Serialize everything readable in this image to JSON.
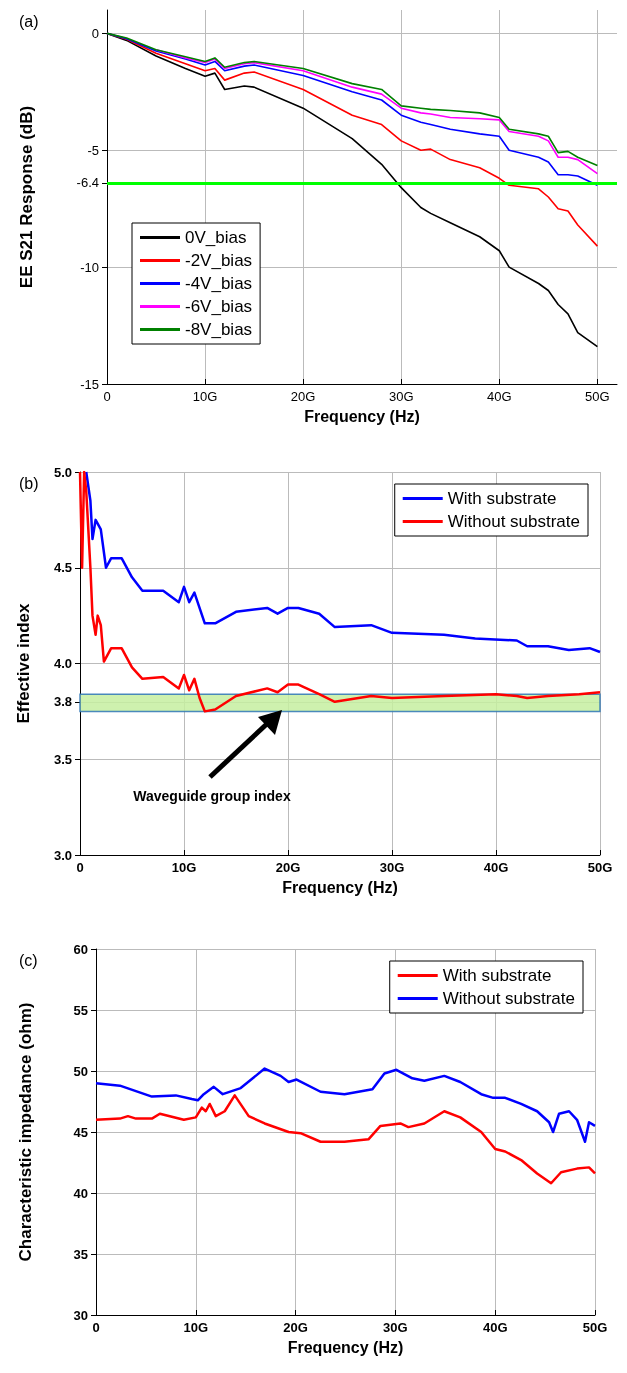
{
  "chart_data": [
    {
      "type": "line",
      "title": "(a)",
      "xlabel": "Frequency (Hz)",
      "ylabel": "EE S21 Response (dB)",
      "xlim": [
        0,
        52
      ],
      "ylim": [
        -15,
        1
      ],
      "xticks": [
        {
          "value": 0,
          "label": "0"
        },
        {
          "value": 10,
          "label": "10G"
        },
        {
          "value": 20,
          "label": "20G"
        },
        {
          "value": 30,
          "label": "30G"
        },
        {
          "value": 40,
          "label": "40G"
        },
        {
          "value": 50,
          "label": "50G"
        }
      ],
      "yticks": [
        0,
        -5,
        -6.4,
        -10,
        -15
      ],
      "grid": true,
      "legend": "bottom left",
      "line_style": "solid",
      "marker": "none",
      "ref_lines": [
        {
          "axis": "y",
          "value": -6.4,
          "color": "#00ff00"
        }
      ],
      "x": [
        0,
        2,
        5,
        8,
        10,
        11,
        12,
        14,
        15,
        20,
        25,
        28,
        30,
        32,
        33,
        35,
        38,
        40,
        41,
        44,
        45,
        46,
        47,
        48,
        50
      ],
      "series": [
        {
          "name": "0V_bias",
          "color": "#000000",
          "values": [
            0,
            -0.3,
            -0.97,
            -1.5,
            -1.83,
            -1.7,
            -2.4,
            -2.25,
            -2.3,
            -3.2,
            -4.5,
            -5.6,
            -6.6,
            -7.45,
            -7.7,
            -8.1,
            -8.7,
            -9.3,
            -10,
            -10.7,
            -11.0,
            -11.6,
            -12.0,
            -12.8,
            -13.4
          ]
        },
        {
          "name": "-2V_bias",
          "color": "#ff0000",
          "values": [
            0,
            -0.25,
            -0.85,
            -1.3,
            -1.6,
            -1.5,
            -2.0,
            -1.7,
            -1.65,
            -2.4,
            -3.5,
            -3.9,
            -4.6,
            -5.0,
            -4.95,
            -5.4,
            -5.75,
            -6.2,
            -6.5,
            -6.65,
            -7.0,
            -7.5,
            -7.6,
            -8.2,
            -9.1
          ]
        },
        {
          "name": "-4V_bias",
          "color": "#0000ff",
          "values": [
            0,
            -0.23,
            -0.75,
            -1.1,
            -1.35,
            -1.2,
            -1.6,
            -1.4,
            -1.35,
            -1.8,
            -2.5,
            -2.85,
            -3.5,
            -3.8,
            -3.9,
            -4.1,
            -4.3,
            -4.4,
            -5.0,
            -5.3,
            -5.5,
            -6.05,
            -6.05,
            -6.1,
            -6.5
          ]
        },
        {
          "name": "-6V_bias",
          "color": "#ff00ff",
          "values": [
            null,
            null,
            -0.7,
            -1.05,
            -1.25,
            -1.1,
            -1.5,
            -1.3,
            -1.25,
            -1.6,
            -2.3,
            -2.6,
            -3.2,
            -3.4,
            -3.45,
            -3.6,
            -3.65,
            -3.7,
            -4.2,
            -4.4,
            -4.6,
            -5.3,
            -5.3,
            -5.4,
            -6.0
          ]
        },
        {
          "name": "-8V_bias",
          "color": "#008000",
          "values": [
            0,
            -0.2,
            -0.7,
            -1.0,
            -1.2,
            -1.05,
            -1.45,
            -1.25,
            -1.2,
            -1.5,
            -2.15,
            -2.4,
            -3.1,
            -3.2,
            -3.25,
            -3.3,
            -3.4,
            -3.6,
            -4.1,
            -4.3,
            -4.4,
            -5.1,
            -5.05,
            -5.3,
            -5.65
          ]
        }
      ]
    },
    {
      "type": "line",
      "title": "(b)",
      "xlabel": "Frequency (Hz)",
      "ylabel": "Effective index",
      "xlim": [
        0,
        50
      ],
      "ylim": [
        3,
        5
      ],
      "xticks": [
        {
          "value": 0,
          "label": "0"
        },
        {
          "value": 10,
          "label": "10G"
        },
        {
          "value": 20,
          "label": "20G"
        },
        {
          "value": 30,
          "label": "30G"
        },
        {
          "value": 40,
          "label": "40G"
        },
        {
          "value": 50,
          "label": "50G"
        }
      ],
      "yticks": [
        {
          "value": 3,
          "label": "3.0"
        },
        3.5,
        3.8,
        {
          "value": 4,
          "label": "4.0"
        },
        4.5,
        {
          "value": 5,
          "label": "5.0"
        }
      ],
      "grid": true,
      "legend": "top right",
      "line_style": "solid",
      "marker": "none",
      "bands": [
        {
          "axis": "y",
          "from": 3.75,
          "to": 3.84,
          "color": "#c6efa0"
        }
      ],
      "annotations": [
        "Waveguide group index"
      ],
      "series": [
        {
          "name": "With substrate",
          "color": "#0000ff",
          "x": [
            0.6,
            1,
            1.2,
            1.5,
            2,
            2.5,
            3,
            4,
            5,
            6,
            8,
            9.5,
            10,
            10.5,
            11,
            12,
            13,
            15,
            18,
            19,
            20,
            21,
            23,
            24.5,
            28,
            30,
            35,
            38,
            42,
            43,
            45,
            47,
            49,
            50
          ],
          "values": [
            5.0,
            4.85,
            4.65,
            4.75,
            4.7,
            4.5,
            4.55,
            4.55,
            4.45,
            4.38,
            4.38,
            4.32,
            4.4,
            4.32,
            4.37,
            4.21,
            4.21,
            4.27,
            4.29,
            4.26,
            4.29,
            4.29,
            4.26,
            4.19,
            4.2,
            4.16,
            4.15,
            4.13,
            4.12,
            4.09,
            4.09,
            4.07,
            4.08,
            4.06
          ]
        },
        {
          "name": "Without substrate",
          "color": "#ff0000",
          "x": [
            0,
            0.2,
            0.4,
            0.6,
            1,
            1.2,
            1.5,
            1.7,
            2,
            2.3,
            3,
            4,
            5,
            6,
            8,
            9.5,
            10,
            10.5,
            11,
            11.5,
            12,
            13,
            15,
            18,
            19,
            20,
            21,
            23,
            24.5,
            28,
            30,
            35,
            40,
            42,
            43,
            45,
            48,
            50
          ],
          "values": [
            5.0,
            4.5,
            5.0,
            4.9,
            4.5,
            4.25,
            4.15,
            4.25,
            4.2,
            4.01,
            4.08,
            4.08,
            3.98,
            3.92,
            3.93,
            3.87,
            3.94,
            3.86,
            3.92,
            3.82,
            3.75,
            3.76,
            3.83,
            3.87,
            3.85,
            3.89,
            3.89,
            3.84,
            3.8,
            3.83,
            3.82,
            3.83,
            3.84,
            3.83,
            3.82,
            3.83,
            3.84,
            3.85
          ]
        }
      ]
    },
    {
      "type": "line",
      "title": "(c)",
      "xlabel": "Frequency (Hz)",
      "ylabel": "Characteristic impedance (ohm)",
      "xlim": [
        0,
        50
      ],
      "ylim": [
        30,
        60
      ],
      "xticks": [
        {
          "value": 0,
          "label": "0"
        },
        {
          "value": 10,
          "label": "10G"
        },
        {
          "value": 20,
          "label": "20G"
        },
        {
          "value": 30,
          "label": "30G"
        },
        {
          "value": 40,
          "label": "40G"
        },
        {
          "value": 50,
          "label": "50G"
        }
      ],
      "yticks": [
        30,
        35,
        40,
        45,
        50,
        55,
        60
      ],
      "grid": true,
      "legend": "top right",
      "line_style": "solid",
      "marker": "none",
      "series": [
        {
          "name": "With substrate",
          "color": "#ff0000",
          "x": [
            0,
            2.4,
            3.2,
            4,
            5.6,
            6.4,
            8.8,
            10,
            10.6,
            11,
            11.4,
            12,
            12.9,
            13.9,
            15.3,
            16.9,
            19.3,
            20.5,
            22.5,
            24.9,
            27.3,
            28.5,
            30.5,
            31.3,
            32.9,
            34.9,
            36.5,
            38.6,
            40,
            41,
            42.6,
            44.2,
            45.6,
            46.6,
            48.2,
            49.4,
            50
          ],
          "values": [
            46.0,
            46.1,
            46.3,
            46.1,
            46.1,
            46.5,
            46.0,
            46.2,
            47.0,
            46.7,
            47.3,
            46.3,
            46.7,
            48.0,
            46.3,
            45.7,
            45.0,
            44.9,
            44.2,
            44.2,
            44.4,
            45.5,
            45.7,
            45.4,
            45.7,
            46.7,
            46.2,
            45.0,
            43.6,
            43.4,
            42.7,
            41.6,
            40.8,
            41.7,
            42.0,
            42.1,
            41.6
          ]
        },
        {
          "name": "Without substrate",
          "color": "#0000ff",
          "x": [
            0,
            2.4,
            5.6,
            8,
            9.6,
            10.2,
            10.8,
            11.8,
            12.7,
            14.5,
            16.9,
            18.5,
            19.3,
            20.1,
            22.5,
            24.9,
            27.7,
            28.9,
            30.1,
            31.7,
            32.9,
            34.9,
            36.5,
            38.6,
            39.8,
            41,
            42.6,
            44.2,
            45.4,
            45.8,
            46.4,
            47.4,
            48.2,
            49,
            49.4,
            50
          ],
          "values": [
            49.0,
            48.8,
            47.9,
            48.0,
            47.7,
            47.6,
            48.1,
            48.7,
            48.1,
            48.6,
            50.2,
            49.6,
            49.1,
            49.3,
            48.3,
            48.1,
            48.5,
            49.8,
            50.1,
            49.4,
            49.2,
            49.6,
            49.1,
            48.1,
            47.8,
            47.8,
            47.3,
            46.7,
            45.8,
            45.0,
            46.5,
            46.7,
            46.0,
            44.2,
            45.8,
            45.5
          ]
        }
      ]
    }
  ]
}
